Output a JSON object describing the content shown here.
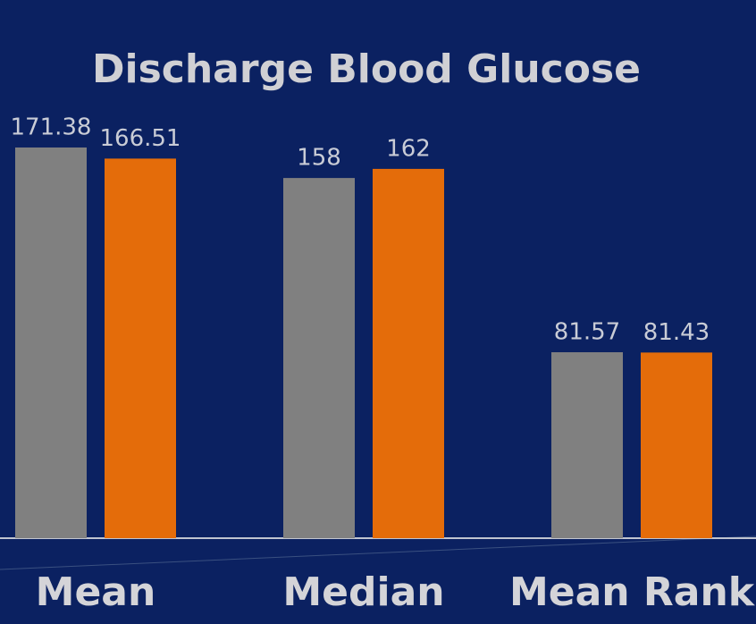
{
  "chart_data": {
    "type": "bar",
    "title": "Discharge Blood Glucose",
    "categories": [
      "Mean",
      "Median",
      "Mean Rank"
    ],
    "series": [
      {
        "color": "#808080",
        "values": [
          171.38,
          158,
          81.57
        ]
      },
      {
        "color": "#e46c0a",
        "values": [
          166.51,
          162,
          81.43
        ]
      }
    ],
    "ylim": [
      0,
      180
    ]
  }
}
